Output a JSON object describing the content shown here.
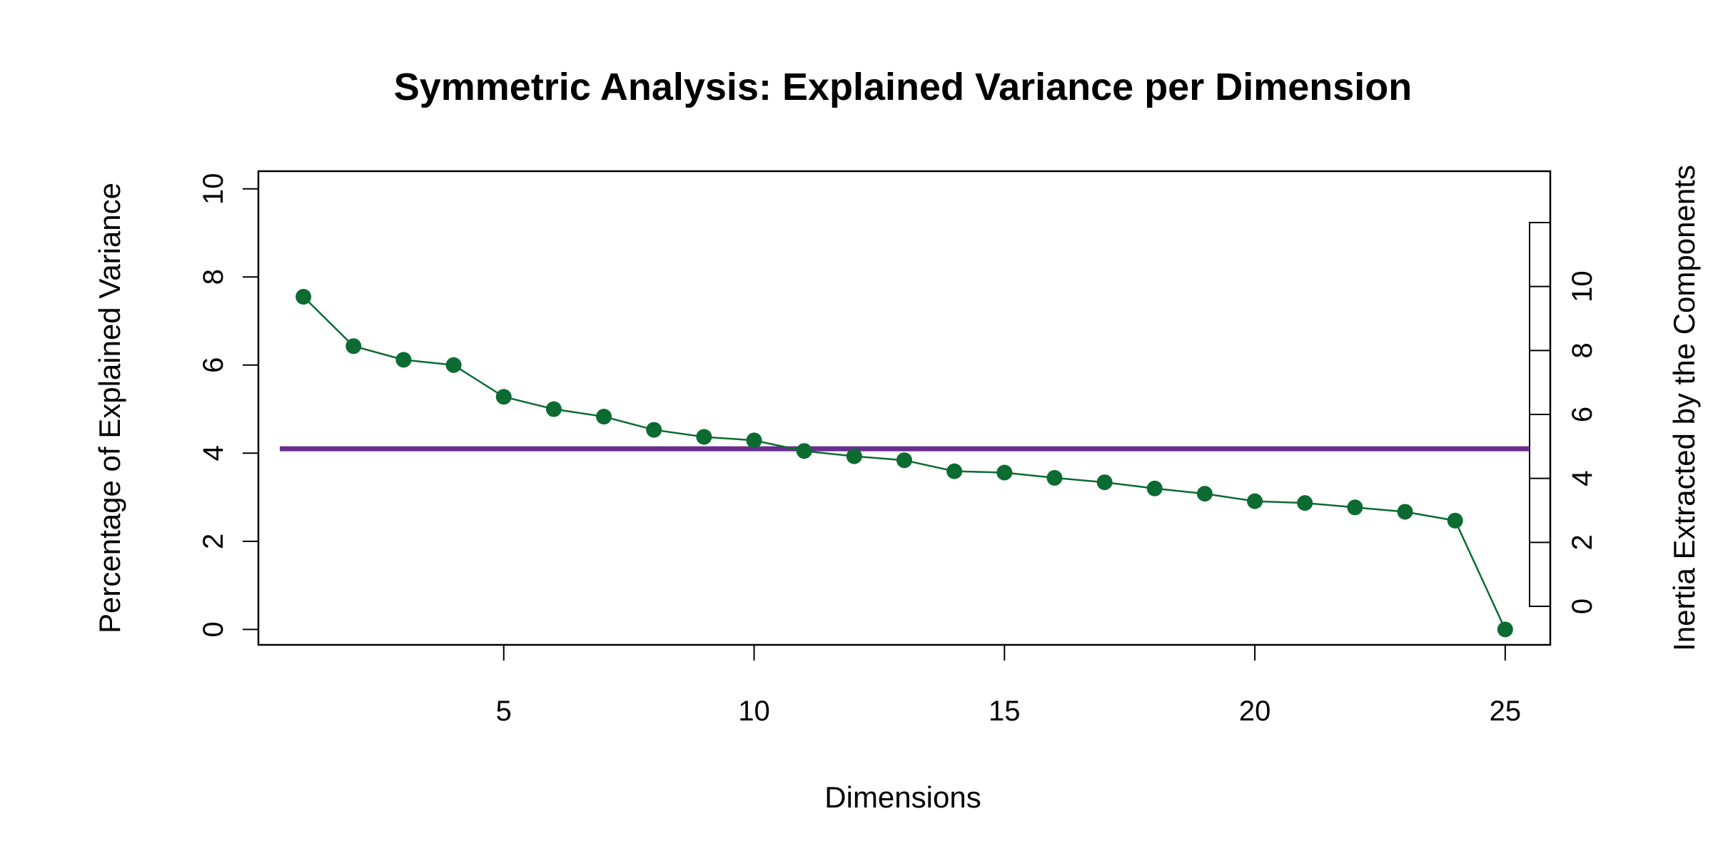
{
  "chart_data": {
    "type": "line",
    "title": "Symmetric Analysis: Explained Variance per Dimension",
    "xlabel": "Dimensions",
    "ylabel": "Percentage of Explained Variance",
    "y2label": "Inertia Extracted by the Components",
    "xlim": [
      0.1,
      25.9
    ],
    "ylim": [
      -0.35,
      10.4
    ],
    "y2lim": [
      0,
      12
    ],
    "xticks": [
      5,
      10,
      15,
      20,
      25
    ],
    "yticks": [
      0,
      2,
      4,
      6,
      8,
      10
    ],
    "y2ticks": [
      0,
      2,
      4,
      6,
      8,
      10
    ],
    "grid": false,
    "legend": "none",
    "series": [
      {
        "x": [
          1,
          2,
          3,
          4,
          5,
          6,
          7,
          8,
          9,
          10,
          11,
          12,
          13,
          14,
          15,
          16,
          17,
          18,
          19,
          20,
          21,
          22,
          23,
          24,
          25
        ],
        "values": [
          7.55,
          6.43,
          6.12,
          6.0,
          5.28,
          5.0,
          4.83,
          4.53,
          4.37,
          4.29,
          4.05,
          3.93,
          3.84,
          3.59,
          3.56,
          3.44,
          3.34,
          3.2,
          3.08,
          2.91,
          2.87,
          2.77,
          2.67,
          2.47,
          0.0
        ],
        "color": "#0b6b31"
      }
    ],
    "reference_line": {
      "y": 4.1,
      "color": "#6a2c8f"
    },
    "colors": {
      "series": "#0b6b31",
      "reference": "#6a2c8f",
      "axes": "#000000"
    }
  }
}
